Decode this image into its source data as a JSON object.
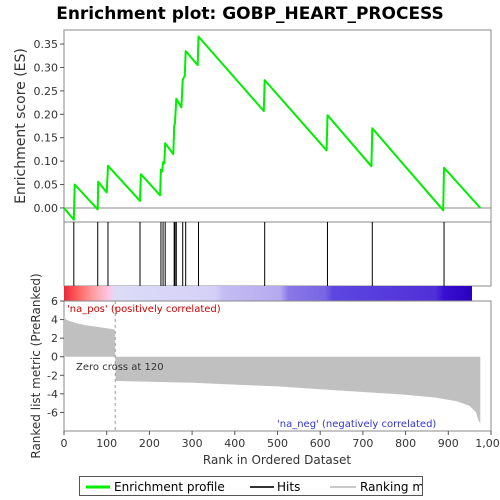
{
  "chart_data": {
    "type": "line",
    "title": "Enrichment plot: GOBP_HEART_PROCESS",
    "es_ylabel": "Enrichment score (ES)",
    "metric_ylabel": "Ranked list metric (PreRanked)",
    "xlabel": "Rank in Ordered Dataset",
    "x_ticks": [
      0,
      100,
      200,
      300,
      400,
      500,
      600,
      700,
      800,
      900,
      "1,000"
    ],
    "x_range": [
      0,
      1000
    ],
    "es_range": [
      -0.03,
      0.38
    ],
    "es_ticks": [
      "0.00",
      "0.05",
      "0.10",
      "0.15",
      "0.20",
      "0.25",
      "0.30",
      "0.35"
    ],
    "metric_range": [
      -8,
      6
    ],
    "metric_ticks": [
      "-6",
      "-4",
      "-2",
      "0",
      "2",
      "4",
      "6"
    ],
    "total_genes": 975,
    "zero_cross": 120,
    "zero_cross_label": "Zero cross at 120",
    "pos_label": "'na_pos' (positively correlated)",
    "neg_label": "'na_neg' (negatively correlated)",
    "series": [
      {
        "name": "Enrichment profile",
        "color": "#00ee00",
        "x": [
          0,
          23,
          25,
          79,
          80,
          100,
          103,
          178,
          180,
          225,
          227,
          230,
          232,
          235,
          237,
          256,
          258,
          260,
          263,
          275,
          278,
          283,
          285,
          313,
          315,
          468,
          470,
          615,
          617,
          720,
          722,
          888,
          890,
          975
        ],
        "y": [
          0.0,
          -0.025,
          0.05,
          -0.003,
          0.056,
          0.033,
          0.09,
          0.015,
          0.072,
          0.027,
          0.082,
          0.078,
          0.098,
          0.095,
          0.138,
          0.115,
          0.175,
          0.182,
          0.233,
          0.215,
          0.273,
          0.283,
          0.335,
          0.305,
          0.366,
          0.207,
          0.273,
          0.123,
          0.198,
          0.089,
          0.17,
          -0.005,
          0.086,
          0.0
        ]
      }
    ],
    "hits": [
      23,
      79,
      103,
      178,
      227,
      232,
      237,
      258,
      260,
      263,
      278,
      285,
      315,
      470,
      617,
      722,
      890
    ],
    "metric_profile": {
      "x": [
        0,
        5,
        15,
        30,
        50,
        80,
        110,
        119,
        120,
        121,
        200,
        300,
        400,
        500,
        600,
        700,
        800,
        870,
        920,
        950,
        965,
        970,
        975
      ],
      "y": [
        4.3,
        4.0,
        3.8,
        3.6,
        3.4,
        3.2,
        3.0,
        2.9,
        0.0,
        -2.6,
        -2.7,
        -2.8,
        -3.0,
        -3.2,
        -3.5,
        -3.8,
        -4.1,
        -4.4,
        -4.8,
        -5.3,
        -6.0,
        -6.8,
        -7.2
      ]
    },
    "legend": {
      "position": "bottom",
      "items": [
        {
          "label": "Enrichment profile",
          "color": "#00ee00",
          "kind": "line"
        },
        {
          "label": "Hits",
          "color": "#333333",
          "kind": "line"
        },
        {
          "label": "Ranking metric scores",
          "color": "#c8c8c8",
          "kind": "line"
        }
      ]
    }
  }
}
